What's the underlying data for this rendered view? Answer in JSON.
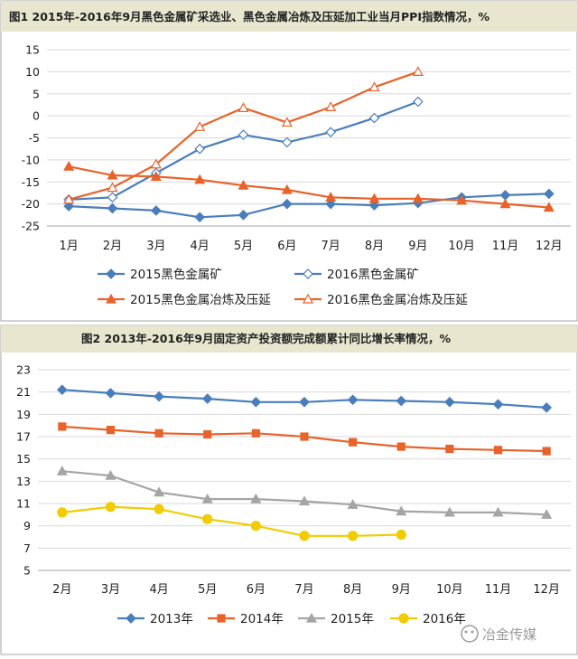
{
  "charts": [
    {
      "type": "line",
      "title": "图1 2015年-2016年9月黑色金属矿采选业、黑色金属冶炼及压延加工业当月PPI指数情况，%",
      "categories": [
        "1月",
        "2月",
        "3月",
        "4月",
        "5月",
        "6月",
        "7月",
        "8月",
        "9月",
        "10月",
        "11月",
        "12月"
      ],
      "ylim": [
        -25,
        15
      ],
      "yticks": [
        15,
        10,
        5,
        0,
        -5,
        -10,
        -15,
        -20,
        -25
      ],
      "grid": true,
      "legend_position": "bottom",
      "series": [
        {
          "name": "2015黑色金属矿",
          "color": "#4a7ebb",
          "marker": "diamond",
          "filled": true,
          "values": [
            -20.5,
            -21.0,
            -21.5,
            -23.0,
            -22.5,
            -20.0,
            -20.0,
            -20.3,
            -19.8,
            -18.5,
            -18.0,
            -17.7
          ]
        },
        {
          "name": "2016黑色金属矿",
          "color": "#4a7ebb",
          "marker": "diamond",
          "filled": false,
          "values": [
            -19.0,
            -18.5,
            -13.0,
            -7.5,
            -4.3,
            -6.0,
            -3.7,
            -0.5,
            3.2,
            null,
            null,
            null
          ]
        },
        {
          "name": "2015黑色金属冶炼及压延",
          "color": "#e8622a",
          "marker": "triangle",
          "filled": true,
          "values": [
            -11.5,
            -13.5,
            -13.8,
            -14.5,
            -15.8,
            -16.8,
            -18.5,
            -18.8,
            -18.8,
            -19.2,
            -20.0,
            -20.8
          ]
        },
        {
          "name": "2016黑色金属冶炼及压延",
          "color": "#e8622a",
          "marker": "triangle",
          "filled": false,
          "values": [
            -19.0,
            -16.3,
            -11.0,
            -2.5,
            1.8,
            -1.5,
            2.0,
            6.5,
            10.0,
            null,
            null,
            null
          ]
        }
      ]
    },
    {
      "type": "line",
      "title": "图2 2013年-2016年9月固定资产投资额完成额累计同比增长率情况，%",
      "categories": [
        "2月",
        "3月",
        "4月",
        "5月",
        "6月",
        "7月",
        "8月",
        "9月",
        "10月",
        "11月",
        "12月"
      ],
      "ylim": [
        5,
        23
      ],
      "yticks": [
        23,
        21,
        19,
        17,
        15,
        13,
        11,
        9,
        7,
        5
      ],
      "grid": true,
      "legend_position": "bottom",
      "series": [
        {
          "name": "2013年",
          "color": "#4a7ebb",
          "marker": "diamond",
          "values": [
            21.2,
            20.9,
            20.6,
            20.4,
            20.1,
            20.1,
            20.3,
            20.2,
            20.1,
            19.9,
            19.6
          ]
        },
        {
          "name": "2014年",
          "color": "#e8622a",
          "marker": "square",
          "values": [
            17.9,
            17.6,
            17.3,
            17.2,
            17.3,
            17.0,
            16.5,
            16.1,
            15.9,
            15.8,
            15.7
          ]
        },
        {
          "name": "2015年",
          "color": "#a5a5a5",
          "marker": "triangle",
          "values": [
            13.9,
            13.5,
            12.0,
            11.4,
            11.4,
            11.2,
            10.9,
            10.3,
            10.2,
            10.2,
            10.0
          ]
        },
        {
          "name": "2016年",
          "color": "#f0cc00",
          "marker": "circle",
          "values": [
            10.2,
            10.7,
            10.5,
            9.6,
            9.0,
            8.1,
            8.1,
            8.2,
            null,
            null,
            null
          ]
        }
      ]
    }
  ],
  "watermark": {
    "text": "冶金传媒"
  },
  "colors": {
    "title_bg": "#e9e6cf",
    "plot_bg": "#ffffff",
    "grid": "#d9d9d9",
    "border": "#a6a6a6"
  }
}
